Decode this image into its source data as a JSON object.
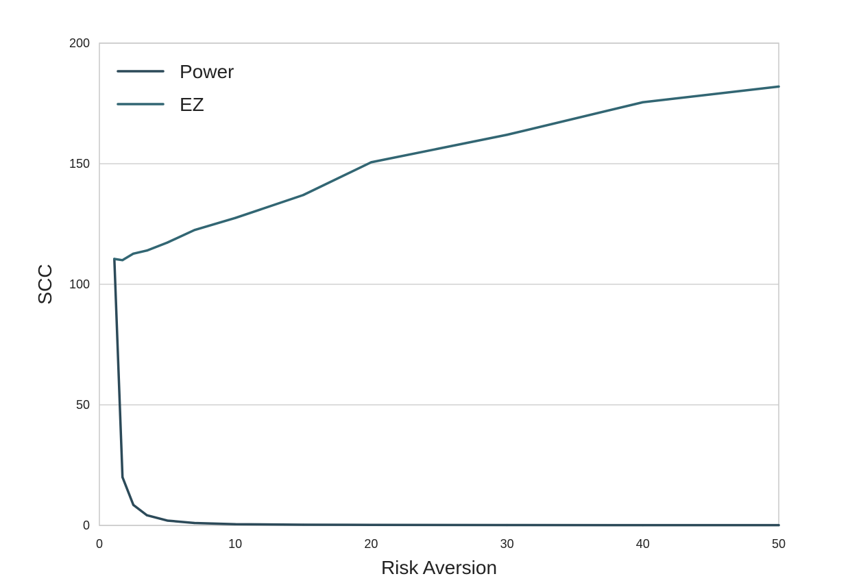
{
  "chart_data": {
    "type": "line",
    "title": "",
    "xlabel": "Risk Aversion",
    "ylabel": "SCC",
    "xlim": [
      0,
      50
    ],
    "ylim": [
      0,
      200
    ],
    "xticks": [
      0,
      10,
      20,
      30,
      40,
      50
    ],
    "yticks": [
      0,
      50,
      100,
      150,
      200
    ],
    "xtick_labels": [
      "0",
      "10",
      "20",
      "30",
      "40",
      "50"
    ],
    "ytick_labels": [
      "0",
      "50",
      "100",
      "150",
      "200"
    ],
    "grid": "horizontal",
    "legend_position": "top-left",
    "series": [
      {
        "name": "Power",
        "color": "#2c4a59",
        "x": [
          1.1,
          1.7,
          2.5,
          3.5,
          5,
          7,
          10,
          15,
          20,
          30,
          40,
          50
        ],
        "y": [
          110.5,
          20,
          8.5,
          4.2,
          2,
          1,
          0.5,
          0.3,
          0.2,
          0.15,
          0.1,
          0.1
        ]
      },
      {
        "name": "EZ",
        "color": "#326673",
        "x": [
          1.1,
          1.7,
          2.5,
          3.5,
          5,
          7,
          10,
          15,
          20,
          30,
          40,
          50
        ],
        "y": [
          110.5,
          110,
          112.7,
          114,
          117.3,
          122.5,
          127.5,
          137,
          150.6,
          162,
          175.5,
          182
        ]
      }
    ]
  }
}
